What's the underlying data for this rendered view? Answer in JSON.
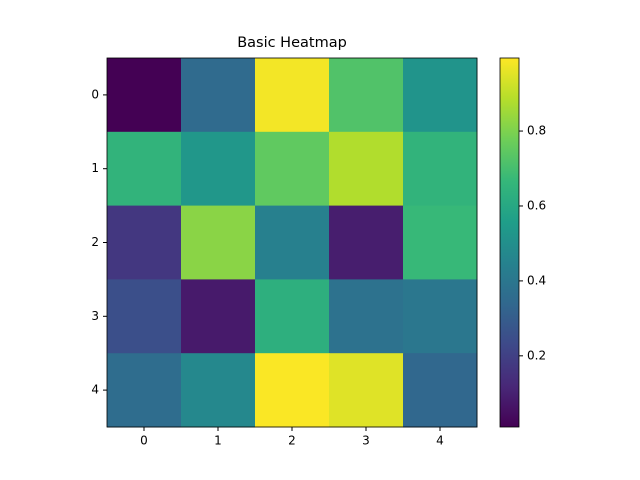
{
  "chart_data": {
    "type": "heatmap",
    "title": "Basic Heatmap",
    "values": [
      [
        0.01,
        0.35,
        0.98,
        0.72,
        0.52
      ],
      [
        0.65,
        0.53,
        0.75,
        0.88,
        0.65
      ],
      [
        0.17,
        0.82,
        0.44,
        0.09,
        0.67
      ],
      [
        0.25,
        0.08,
        0.63,
        0.38,
        0.4
      ],
      [
        0.36,
        0.47,
        0.99,
        0.95,
        0.34
      ]
    ],
    "xlim": [
      -0.5,
      4.5
    ],
    "ylim": [
      4.5,
      -0.5
    ],
    "xticks": [
      0,
      1,
      2,
      3,
      4
    ],
    "yticks": [
      0,
      1,
      2,
      3,
      4
    ],
    "clim": [
      0.01,
      0.995
    ],
    "cticks": [
      0.2,
      0.4,
      0.6,
      0.8
    ],
    "colormap": [
      "#440154",
      "#482878",
      "#3e4989",
      "#31688e",
      "#26828e",
      "#1f9e89",
      "#35b779",
      "#6ece58",
      "#b5de2b",
      "#fde725"
    ]
  }
}
